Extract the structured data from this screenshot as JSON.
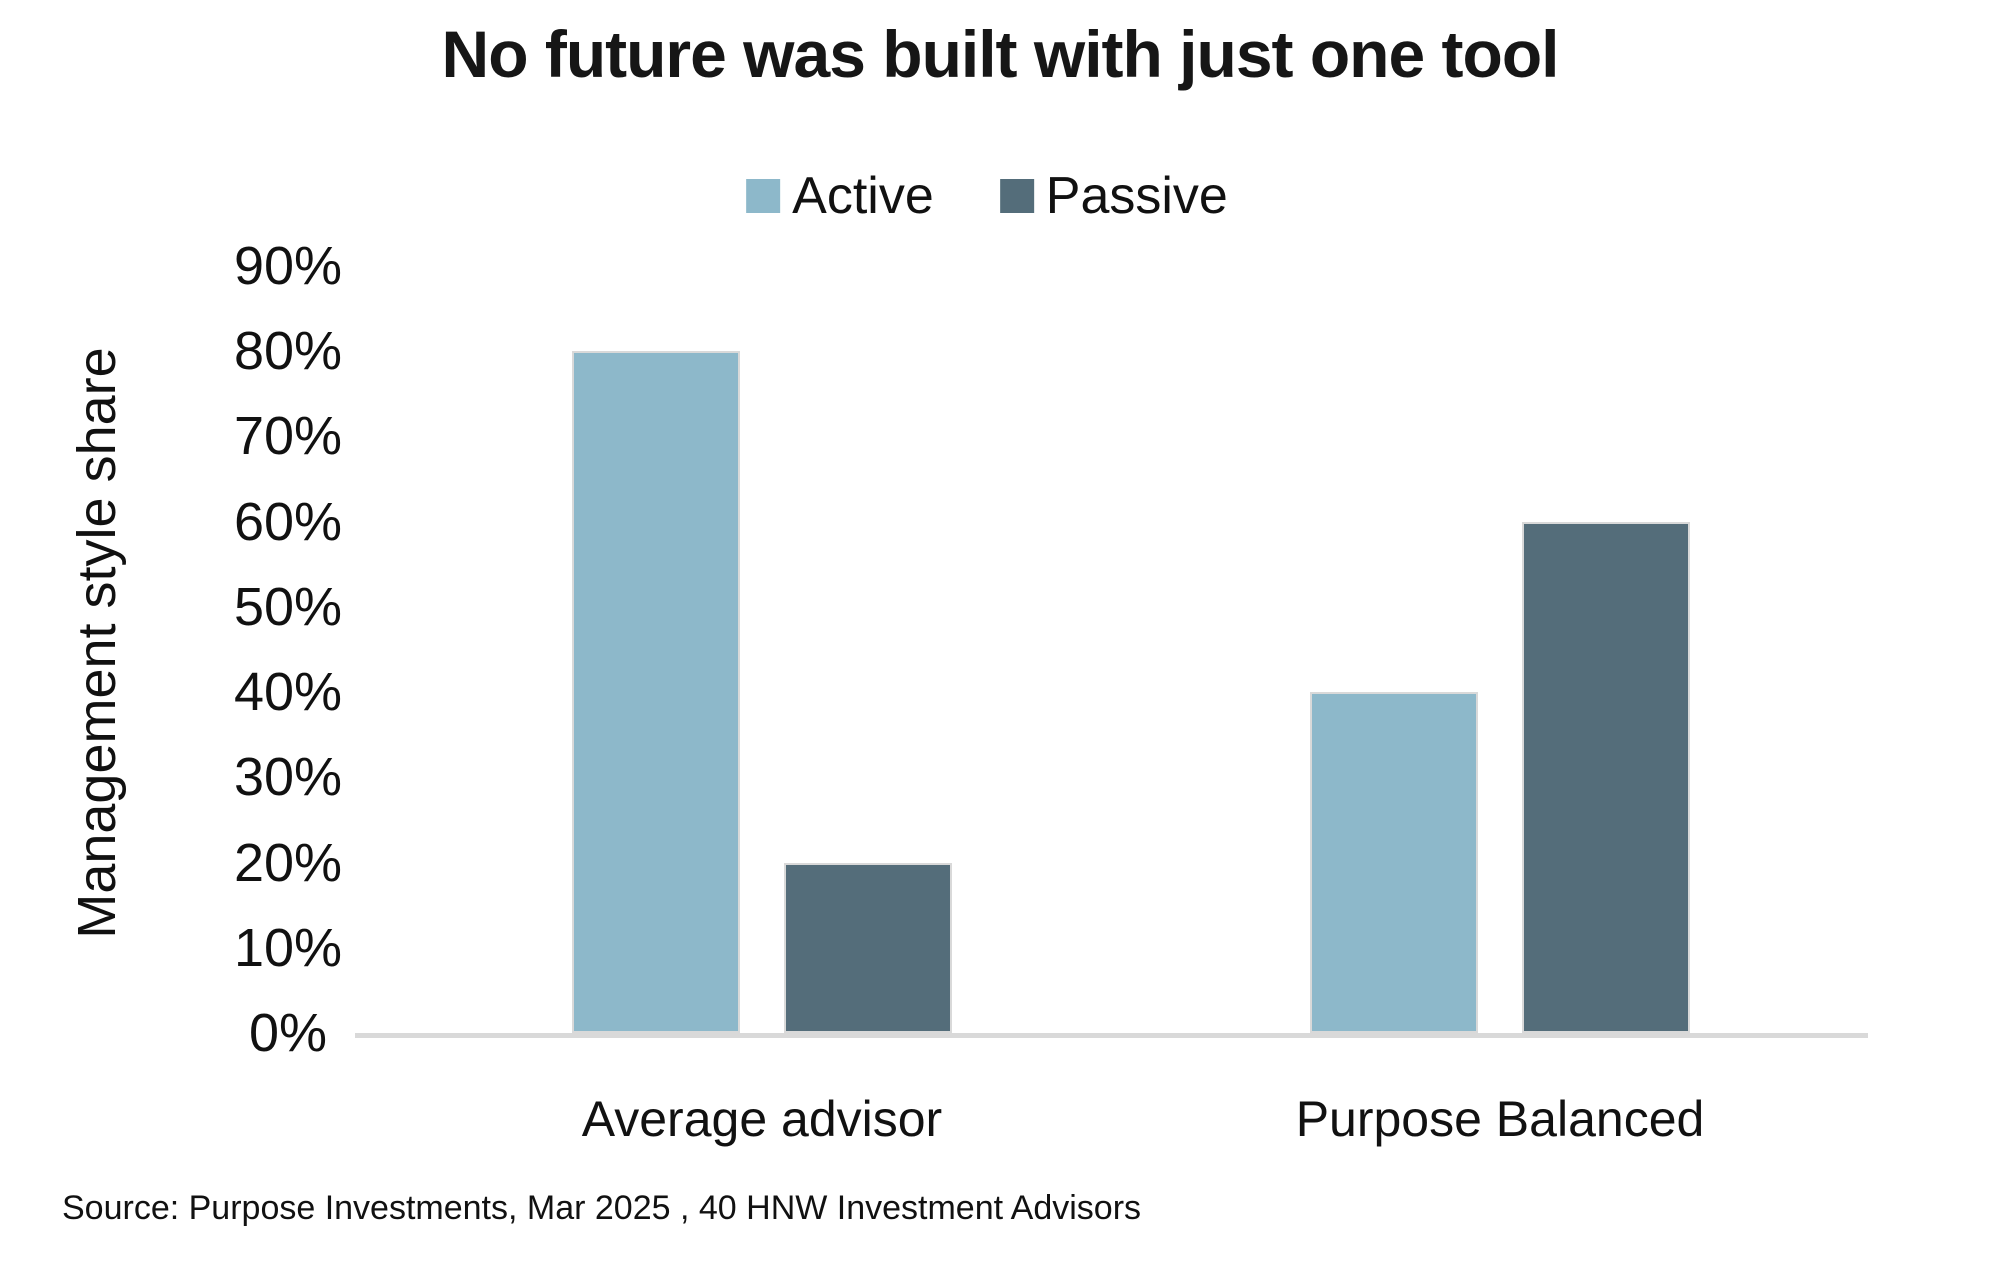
{
  "chart_data": {
    "type": "bar",
    "title": "No future was built with just one tool",
    "ylabel": "Management style share",
    "categories": [
      "Average advisor",
      "Purpose Balanced"
    ],
    "series": [
      {
        "name": "Active",
        "color": "#8db8ca",
        "values": [
          80,
          40
        ]
      },
      {
        "name": "Passive",
        "color": "#546d7a",
        "values": [
          20,
          60
        ]
      }
    ],
    "yticks": [
      "90%",
      "80%",
      "70%",
      "60%",
      "50%",
      "40%",
      "30%",
      "20%",
      "10%",
      "0%"
    ],
    "ylim": [
      0,
      90
    ],
    "unit": "%",
    "legend_position": "top",
    "grid": false,
    "source": "Source: Purpose Investments, Mar 2025 , 40 HNW Investment Advisors",
    "colors": {
      "axis_line": "#d9d9d9",
      "title_text": "#161616",
      "body_text": "#111111"
    }
  }
}
